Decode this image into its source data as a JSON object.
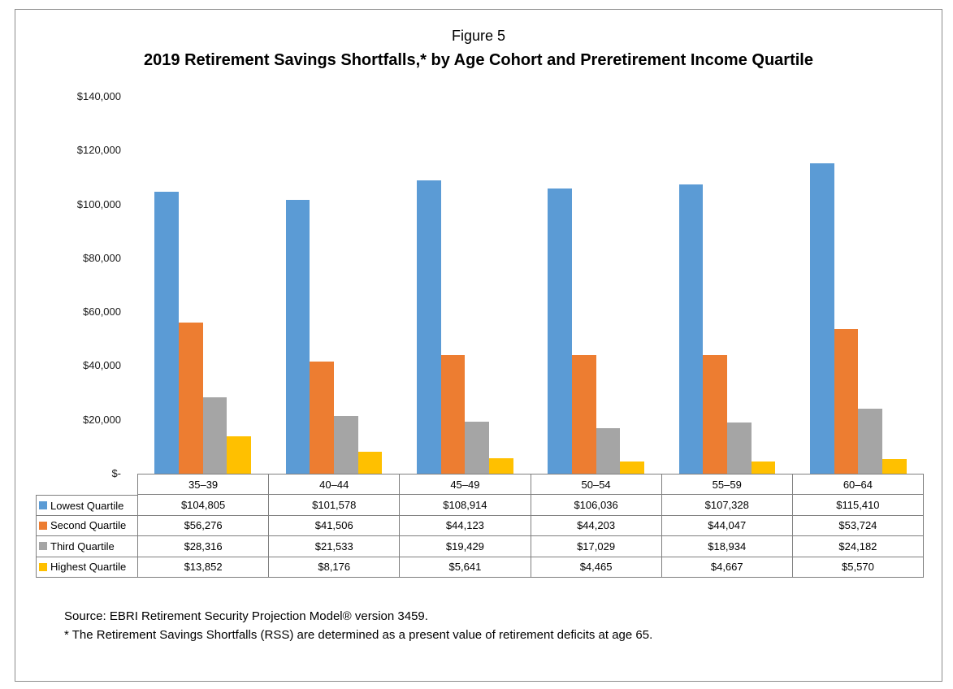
{
  "figure": {
    "label": "Figure 5"
  },
  "chart_data": {
    "type": "bar",
    "title": "2019 Retirement Savings Shortfalls,* by Age Cohort and Preretirement Income Quartile",
    "subtitle": "",
    "categories": [
      "35–39",
      "40–44",
      "45–49",
      "50–54",
      "55–59",
      "60–64"
    ],
    "series": [
      {
        "name": "Lowest Quartile",
        "color": "#5B9BD5",
        "values": [
          104805,
          101578,
          108914,
          106036,
          107328,
          115410
        ]
      },
      {
        "name": "Second Quartile",
        "color": "#ED7D31",
        "values": [
          56276,
          41506,
          44123,
          44203,
          44047,
          53724
        ]
      },
      {
        "name": "Third Quartile",
        "color": "#A5A5A5",
        "values": [
          28316,
          21533,
          19429,
          17029,
          18934,
          24182
        ]
      },
      {
        "name": "Highest Quartile",
        "color": "#FFC000",
        "values": [
          13852,
          8176,
          5641,
          4465,
          4667,
          5570
        ]
      }
    ],
    "xlabel": "",
    "ylabel": "",
    "ylim": [
      0,
      140000
    ],
    "ytick_step": 20000,
    "yticks": [
      "$140,000",
      "$120,000",
      "$100,000",
      "$80,000",
      "$60,000",
      "$40,000",
      "$20,000",
      "$-"
    ],
    "grid": false,
    "legend_position": "left-of-data-table",
    "data_table_shown": true,
    "value_prefix": "$"
  },
  "source": {
    "line1": "Source: EBRI Retirement Security Projection Model® version 3459.",
    "line2": "* The Retirement Savings Shortfalls (RSS) are determined as a present value of retirement deficits at age 65."
  },
  "colors": {
    "frame_border": "#8c8c8c",
    "table_border": "#7f7f7f",
    "text": "#000000"
  }
}
